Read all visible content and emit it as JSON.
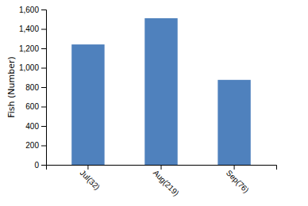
{
  "chart_data": {
    "type": "bar",
    "categories": [
      "Jul(32)",
      "Aug(219)",
      "Sep(76)"
    ],
    "values": [
      1240,
      1510,
      875
    ],
    "color": "#4f81bd",
    "ylabel": "Fish (Number)",
    "ylim": [
      0,
      1600
    ],
    "yticks": [
      0,
      200,
      400,
      600,
      800,
      {
        "value": 1000,
        "label": "1,000"
      },
      {
        "value": 1200,
        "label": "1,200"
      },
      {
        "value": 1400,
        "label": "1,400"
      },
      {
        "value": 1600,
        "label": "1,600"
      }
    ],
    "grid": false
  }
}
